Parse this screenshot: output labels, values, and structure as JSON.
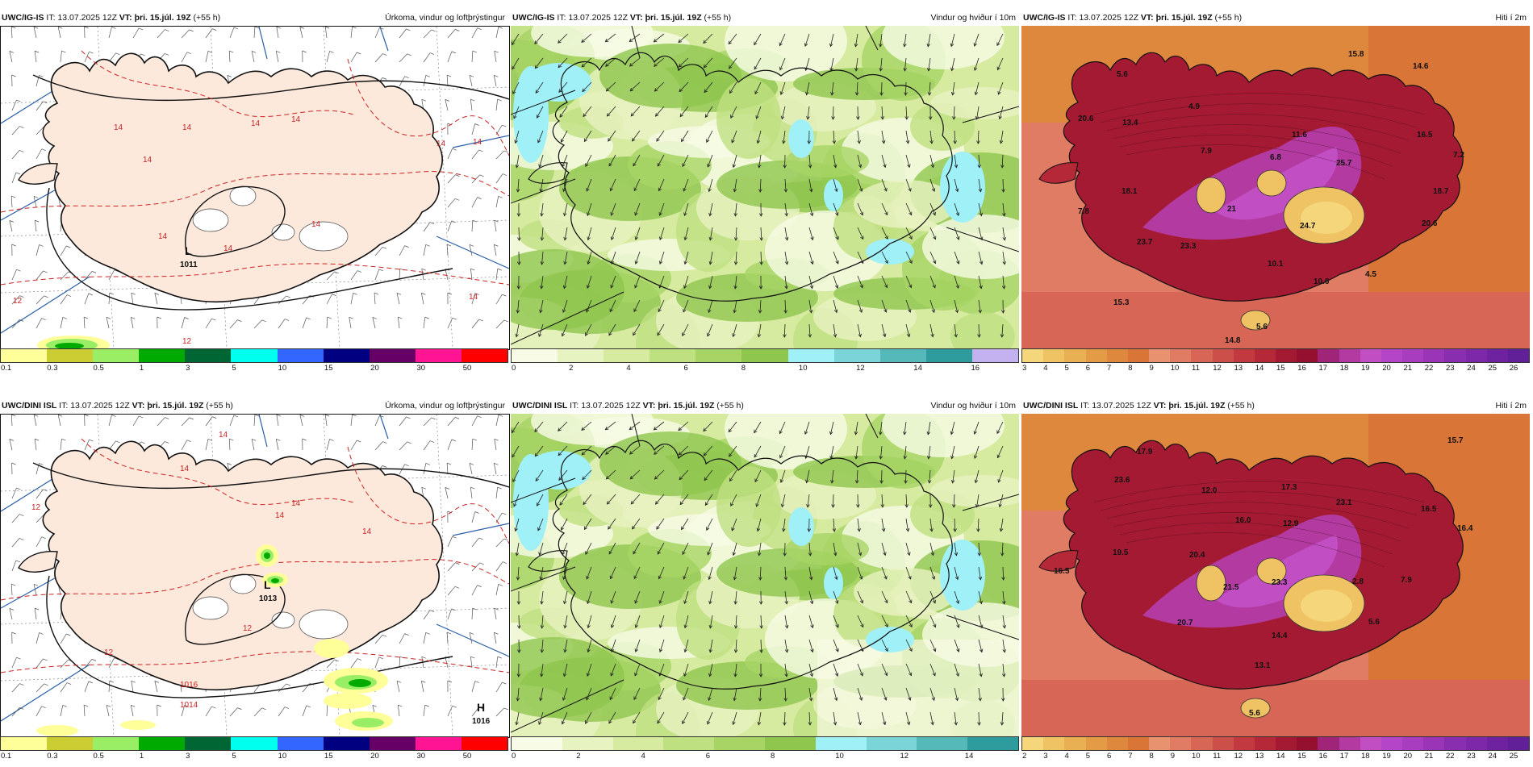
{
  "panels": [
    {
      "id": "p1",
      "model": "UWC/IG-IS",
      "init_label": "IT:",
      "init_time": "13.07.2025 12Z",
      "valid_label": "VT:",
      "valid_time": "þri. 15.júl. 19Z",
      "lead": "(+55 h)",
      "title": "Úrkoma, vindur og loftþrýstingur",
      "colorbar": [
        "#ffff99",
        "#cccc33",
        "#99ee66",
        "#00aa00",
        "#006633",
        "#00ffee",
        "#3366ff",
        "#000080",
        "#660066",
        "#ff1493",
        "#ff0000"
      ],
      "ticks": [
        "0.1",
        "0.3",
        "0.5",
        "1",
        "3",
        "5",
        "10",
        "15",
        "20",
        "30",
        "50"
      ],
      "pressure_centers": [
        {
          "type": "L",
          "value": "1011"
        }
      ],
      "contour_labels": [
        "14",
        "14",
        "14",
        "14",
        "14",
        "14",
        "14",
        "14",
        "14",
        "12",
        "12",
        "14",
        "14"
      ]
    },
    {
      "id": "p2",
      "model": "UWC/IG-IS",
      "init_label": "IT:",
      "init_time": "13.07.2025 12Z",
      "valid_label": "VT:",
      "valid_time": "þri. 15.júl. 19Z",
      "lead": "(+55 h)",
      "title": "Vindur og hviður í 10m",
      "colorbar": [
        "#f8fbe6",
        "#e8f3c2",
        "#d6eba0",
        "#bfe081",
        "#a8d465",
        "#8fc64d",
        "#a0f0f8",
        "#7ad4d8",
        "#55b9b9",
        "#2e9c9c",
        "#c4b2f0"
      ],
      "ticks": [
        "0",
        "2",
        "4",
        "6",
        "8",
        "10",
        "12",
        "14",
        "16"
      ]
    },
    {
      "id": "p3",
      "model": "UWC/IG-IS",
      "init_label": "IT:",
      "init_time": "13.07.2025 12Z",
      "valid_label": "VT:",
      "valid_time": "þri. 15.júl. 19Z",
      "lead": "(+55 h)",
      "title": "Hiti í 2m",
      "colorbar": [
        "#f6d67a",
        "#efc364",
        "#e8b052",
        "#e39c45",
        "#de883d",
        "#d87537",
        "#e89270",
        "#e07c63",
        "#d76656",
        "#cd4f4a",
        "#c23a40",
        "#b52838",
        "#a51a33",
        "#95102f",
        "#a02478",
        "#b33aa0",
        "#c24ec4",
        "#b545c8",
        "#a83dc0",
        "#9a35b8",
        "#8a2eb0",
        "#7d28a8",
        "#6f22a0",
        "#622098"
      ],
      "ticks": [
        "3",
        "4",
        "5",
        "6",
        "7",
        "8",
        "9",
        "10",
        "11",
        "12",
        "13",
        "14",
        "15",
        "16",
        "17",
        "18",
        "19",
        "20",
        "21",
        "22",
        "23",
        "24",
        "25",
        "26"
      ],
      "values": [
        "15.8",
        "14.6",
        "5.6",
        "20.6",
        "13.4",
        "4.9",
        "11.6",
        "7.9",
        "6.8",
        "16.5",
        "7.2",
        "25.7",
        "18.1",
        "18.7",
        "7.8",
        "21",
        "24.7",
        "20.6",
        "23.7",
        "23.3",
        "10.1",
        "10.6",
        "4.5",
        "15.3",
        "5.6",
        "14.8"
      ]
    },
    {
      "id": "p4",
      "model": "UWC/DINI ISL",
      "init_label": "IT:",
      "init_time": "13.07.2025 12Z",
      "valid_label": "VT:",
      "valid_time": "þri. 15.júl. 19Z",
      "lead": "(+55 h)",
      "title": "Úrkoma, vindur og loftþrýstingur",
      "colorbar": [
        "#ffff99",
        "#cccc33",
        "#99ee66",
        "#00aa00",
        "#006633",
        "#00ffee",
        "#3366ff",
        "#000080",
        "#660066",
        "#ff1493",
        "#ff0000"
      ],
      "ticks": [
        "0.1",
        "0.3",
        "0.5",
        "1",
        "3",
        "5",
        "10",
        "15",
        "20",
        "30",
        "50"
      ],
      "pressure_centers": [
        {
          "type": "L",
          "value": "1013"
        },
        {
          "type": "H",
          "value": "1016"
        }
      ],
      "contour_labels": [
        "14",
        "14",
        "12",
        "14",
        "14",
        "14",
        "12",
        "12",
        "1016",
        "1014"
      ]
    },
    {
      "id": "p5",
      "model": "UWC/DINI ISL",
      "init_label": "IT:",
      "init_time": "13.07.2025 12Z",
      "valid_label": "VT:",
      "valid_time": "þri. 15.júl. 19Z",
      "lead": "(+55 h)",
      "title": "Vindur og hviður í 10m",
      "colorbar": [
        "#f8fbe6",
        "#e8f3c2",
        "#d6eba0",
        "#bfe081",
        "#a8d465",
        "#8fc64d",
        "#a0f0f8",
        "#7ad4d8",
        "#55b9b9",
        "#2e9c9c"
      ],
      "ticks": [
        "0",
        "2",
        "4",
        "6",
        "8",
        "10",
        "12",
        "14"
      ]
    },
    {
      "id": "p6",
      "model": "UWC/DINI ISL",
      "init_label": "IT:",
      "init_time": "13.07.2025 12Z",
      "valid_label": "VT:",
      "valid_time": "þri. 15.júl. 19Z",
      "lead": "(+55 h)",
      "title": "Hiti í 2m",
      "colorbar": [
        "#f6d67a",
        "#efc364",
        "#e8b052",
        "#e39c45",
        "#de883d",
        "#d87537",
        "#e89270",
        "#e07c63",
        "#d76656",
        "#cd4f4a",
        "#c23a40",
        "#b52838",
        "#a51a33",
        "#95102f",
        "#a02478",
        "#b33aa0",
        "#c24ec4",
        "#b545c8",
        "#a83dc0",
        "#9a35b8",
        "#8a2eb0",
        "#7d28a8",
        "#6f22a0",
        "#622098"
      ],
      "ticks": [
        "2",
        "3",
        "4",
        "5",
        "6",
        "7",
        "8",
        "9",
        "10",
        "11",
        "12",
        "13",
        "14",
        "15",
        "16",
        "17",
        "18",
        "19",
        "20",
        "21",
        "22",
        "23",
        "24",
        "25"
      ],
      "values": [
        "15.7",
        "17.9",
        "23.6",
        "12.0",
        "17.3",
        "23.1",
        "16.5",
        "16.0",
        "12.9",
        "16.4",
        "19.5",
        "20.4",
        "2.8",
        "7.9",
        "16.5",
        "21.5",
        "23.3",
        "20.7",
        "14.4",
        "5.6",
        "13.1",
        "5.6"
      ]
    }
  ]
}
